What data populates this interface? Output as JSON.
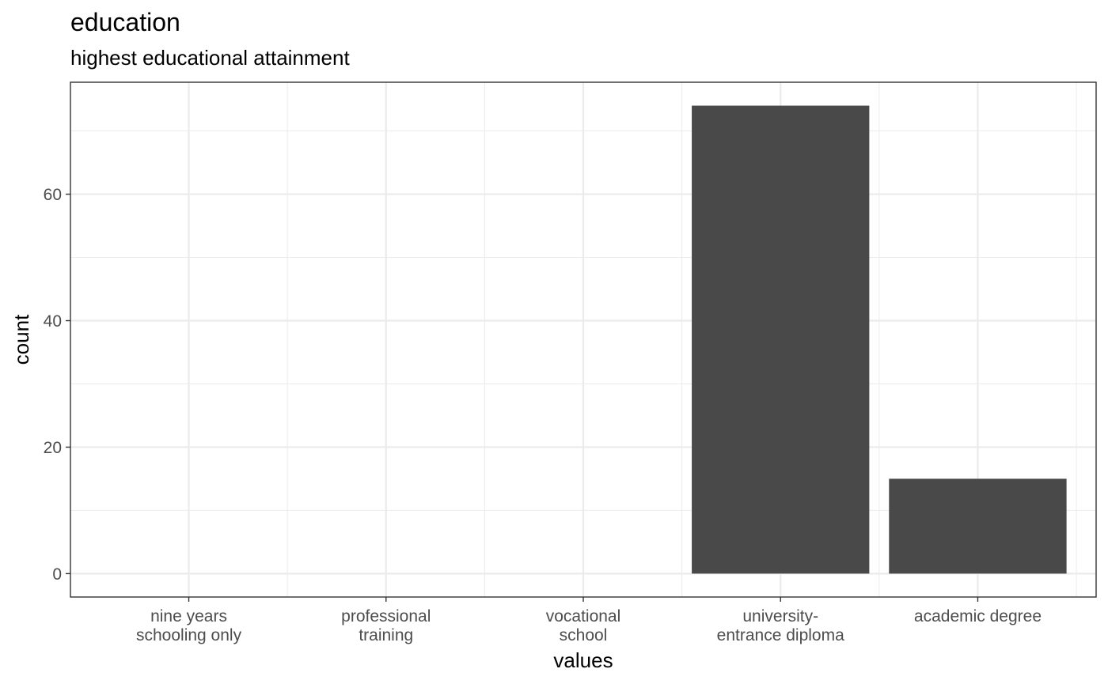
{
  "title": "education",
  "subtitle": "highest educational attainment",
  "chart_data": {
    "type": "bar",
    "title": "education",
    "subtitle": "highest educational attainment",
    "xlabel": "values",
    "ylabel": "count",
    "categories": [
      [
        "nine years",
        "schooling only"
      ],
      [
        "professional",
        "training"
      ],
      [
        "vocational",
        "school"
      ],
      [
        "university-",
        "entrance diploma"
      ],
      [
        "academic degree"
      ]
    ],
    "values": [
      0,
      0,
      0,
      74,
      15
    ],
    "ylim": [
      -3.7,
      77.7
    ],
    "yticks": [
      0,
      20,
      40,
      60
    ],
    "grid": true,
    "bar_color": "#494949",
    "grid_color": "#ebebeb",
    "panel_border_color": "#333333"
  }
}
